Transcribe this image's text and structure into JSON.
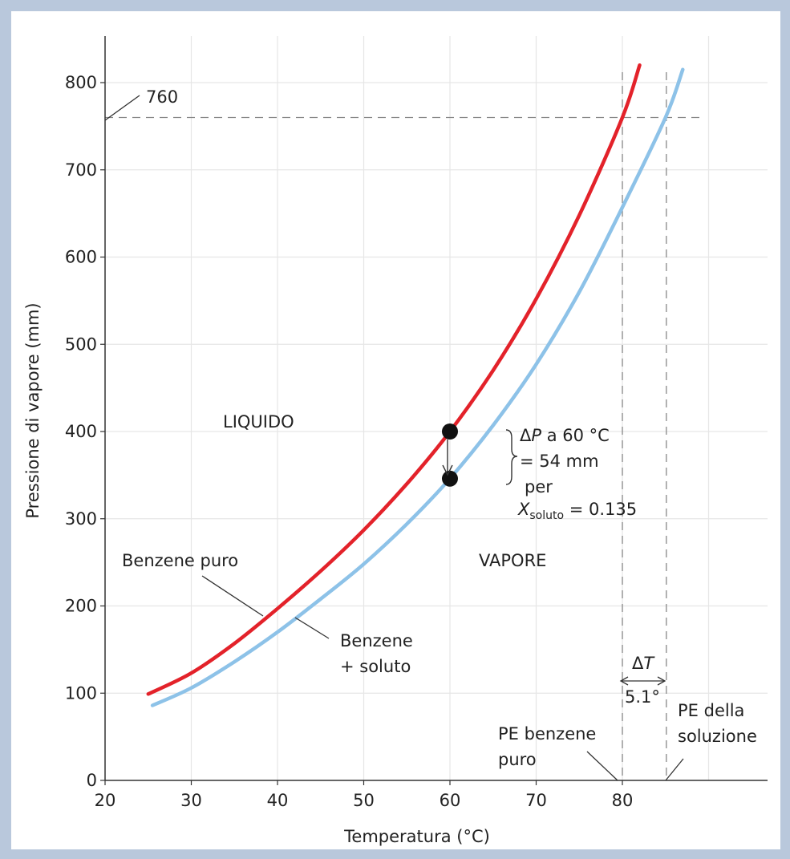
{
  "chart_data": {
    "type": "line",
    "xlabel": "Temperatura (°C)",
    "ylabel": "Pressione di vapore (mm)",
    "xlim": [
      20,
      96
    ],
    "ylim": [
      0,
      850
    ],
    "x_ticks": [
      "20",
      "30",
      "40",
      "50",
      "60",
      "70",
      "80"
    ],
    "y_ticks": [
      "0",
      "100",
      "200",
      "300",
      "400",
      "500",
      "600",
      "700",
      "800"
    ],
    "grid": true,
    "series": [
      {
        "name": "Benzene puro",
        "color": "#e3222a",
        "x": [
          25,
          30,
          35,
          40,
          45,
          50,
          55,
          60,
          65,
          70,
          75,
          80,
          82
        ],
        "y": [
          99,
          123,
          157,
          197,
          240,
          287,
          340,
          400,
          470,
          552,
          648,
          760,
          820
        ]
      },
      {
        "name": "Benzene + soluto",
        "color": "#8dc2e8",
        "x": [
          25.5,
          30,
          35,
          40,
          45,
          50,
          55,
          60,
          65,
          70,
          75,
          80,
          85,
          87
        ],
        "y": [
          86,
          106,
          136,
          170,
          208,
          248,
          294,
          346,
          407,
          477,
          560,
          657,
          760,
          815
        ]
      }
    ],
    "points": [
      {
        "x": 60,
        "y": 400
      },
      {
        "x": 60,
        "y": 346
      }
    ],
    "reference_lines": {
      "h_y": 760,
      "v_x": [
        80,
        85.1
      ]
    }
  },
  "labels": {
    "p760": "760",
    "liquido": "LIQUIDO",
    "vapore": "VAPORE",
    "benzene_puro": "Benzene puro",
    "benzene_line1": "Benzene",
    "benzene_line2": "+ soluto",
    "dp_delta": "Δ",
    "dp_var": "P",
    "dp_rest": " a 60 °C",
    "dp_line2": "= 54 mm",
    "dp_line3": "per",
    "x_var": "X",
    "x_sub": "soluto",
    "x_rest": " = 0.135",
    "dt_delta": "Δ",
    "dt_var": "T",
    "dt_value": "5.1°",
    "pe_puro_1": "PE benzene",
    "pe_puro_2": "puro",
    "pe_sol_1": "PE della",
    "pe_sol_2": "soluzione"
  },
  "colors": {
    "frame": "#b9c8dc",
    "grid": "#e6e6e6",
    "axis": "#333333",
    "dashed": "#888888",
    "point": "#111111"
  }
}
